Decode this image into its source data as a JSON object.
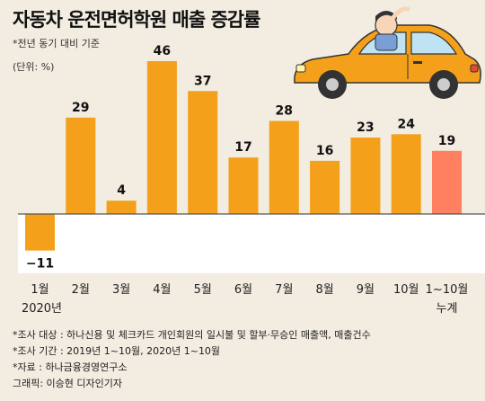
{
  "header": {
    "title": "자동차 운전면허학원 매출 증감률",
    "subtitle": "*전년 동기 대비 기준",
    "unit": "(단위: %)"
  },
  "chart_data": {
    "type": "bar",
    "title": "자동차 운전면허학원 매출 증감률",
    "categories": [
      "1월",
      "2월",
      "3월",
      "4월",
      "5월",
      "6월",
      "7월",
      "8월",
      "9월",
      "10월",
      "1~10월"
    ],
    "values": [
      -11,
      29,
      4,
      46,
      37,
      17,
      28,
      16,
      23,
      24,
      19
    ],
    "value_labels": [
      "−11",
      "29",
      "4",
      "46",
      "37",
      "17",
      "28",
      "16",
      "23",
      "24",
      "19"
    ],
    "year_label": "2020년",
    "cumulative_label": "누계",
    "ylim": [
      -20,
      50
    ],
    "grid": false,
    "colors": {
      "monthly": "#f5a01a",
      "cumulative": "#ff8060",
      "negative_bg": "#ffffff",
      "baseline": "#555555"
    }
  },
  "notes": {
    "subject": "*조사 대상 : 하나신용 및 체크카드 개인회원의 일시불 및 할부·무승인 매출액, 매출건수",
    "period": "*조사 기간 : 2019년 1~10월, 2020년 1~10월",
    "source": "*자료 : 하나금융경영연구소",
    "graphic": "그래픽: 이승현 디자인기자"
  },
  "illustration": {
    "icon": "car-with-waving-driver-icon",
    "body_color": "#f5a01a"
  }
}
